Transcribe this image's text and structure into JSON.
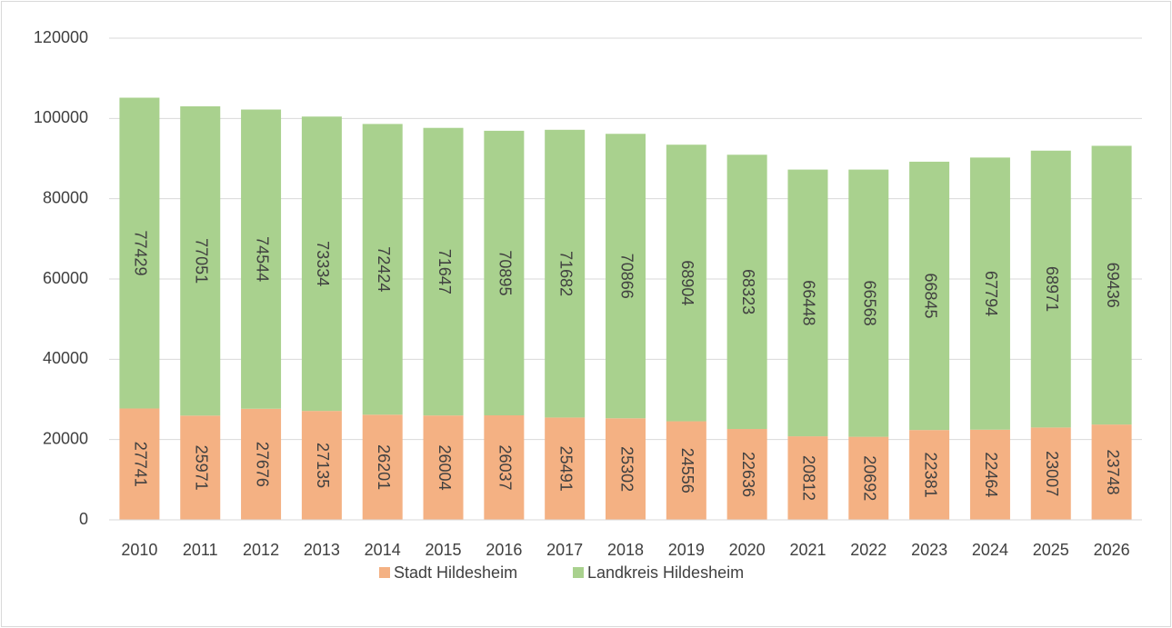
{
  "chart_data": {
    "type": "stacked-bar",
    "categories": [
      "2010",
      "2011",
      "2012",
      "2013",
      "2014",
      "2015",
      "2016",
      "2017",
      "2018",
      "2019",
      "2020",
      "2021",
      "2022",
      "2023",
      "2024",
      "2025",
      "2026"
    ],
    "series": [
      {
        "name": "Stadt Hildesheim",
        "color": "#f4b183",
        "values": [
          27741,
          25971,
          27676,
          27135,
          26201,
          26004,
          26037,
          25491,
          25302,
          24556,
          22636,
          20812,
          20692,
          22381,
          22464,
          23007,
          23748
        ]
      },
      {
        "name": "Landkreis Hildesheim",
        "color": "#a9d18e",
        "values": [
          77429,
          77051,
          74544,
          73334,
          72424,
          71647,
          70895,
          71682,
          70866,
          68904,
          68323,
          66448,
          66568,
          66845,
          67794,
          68971,
          69436
        ]
      }
    ],
    "ylim": [
      0,
      120000
    ],
    "yticks": [
      0,
      20000,
      40000,
      60000,
      80000,
      100000,
      120000
    ],
    "grid": true,
    "legend": "bottom"
  }
}
